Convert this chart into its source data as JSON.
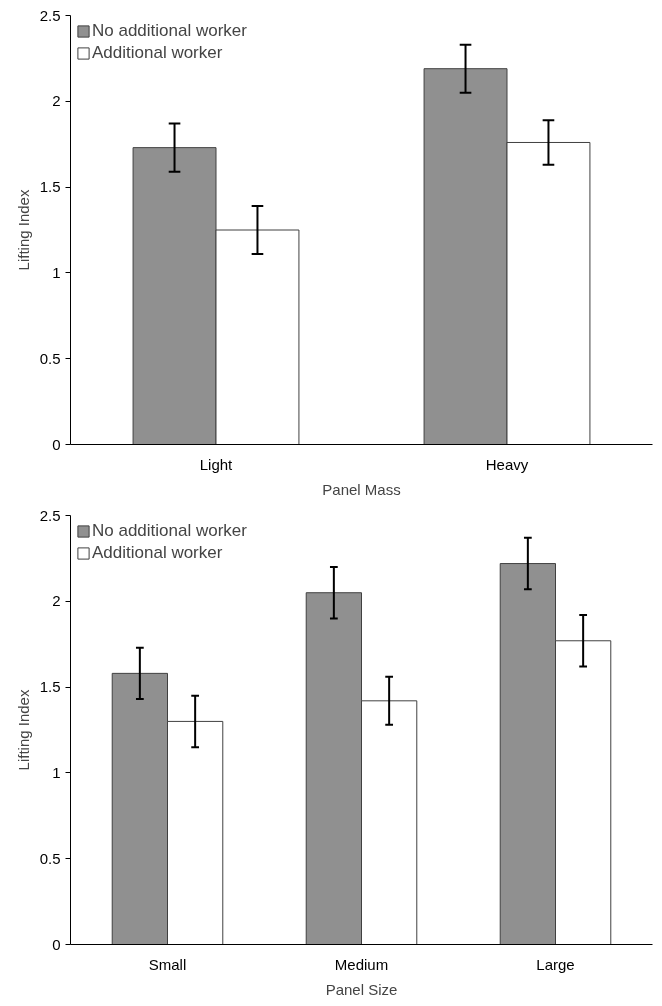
{
  "chart_data": [
    {
      "type": "bar",
      "xlabel": "Panel Mass",
      "ylabel": "Lifting Index",
      "categories": [
        "Light",
        "Heavy"
      ],
      "ylim": [
        0,
        2.5
      ],
      "yticks": [
        0,
        0.5,
        1,
        1.5,
        2,
        2.5
      ],
      "legend": "top left",
      "series": [
        {
          "name": "No additional worker",
          "color": "#909090",
          "values": [
            1.73,
            2.19
          ],
          "errors": [
            0.14,
            0.14
          ]
        },
        {
          "name": "Additional worker",
          "color": "#ffffff",
          "values": [
            1.25,
            1.76
          ],
          "errors": [
            0.14,
            0.13
          ]
        }
      ]
    },
    {
      "type": "bar",
      "xlabel": "Panel Size",
      "ylabel": "Lifting Index",
      "categories": [
        "Small",
        "Medium",
        "Large"
      ],
      "ylim": [
        0,
        2.5
      ],
      "yticks": [
        0,
        0.5,
        1,
        1.5,
        2,
        2.5
      ],
      "legend": "top left",
      "series": [
        {
          "name": "No additional worker",
          "color": "#909090",
          "values": [
            1.58,
            2.05,
            2.22
          ],
          "errors": [
            0.15,
            0.15,
            0.15
          ]
        },
        {
          "name": "Additional worker",
          "color": "#ffffff",
          "values": [
            1.3,
            1.42,
            1.77
          ],
          "errors": [
            0.15,
            0.14,
            0.15
          ]
        }
      ]
    }
  ]
}
